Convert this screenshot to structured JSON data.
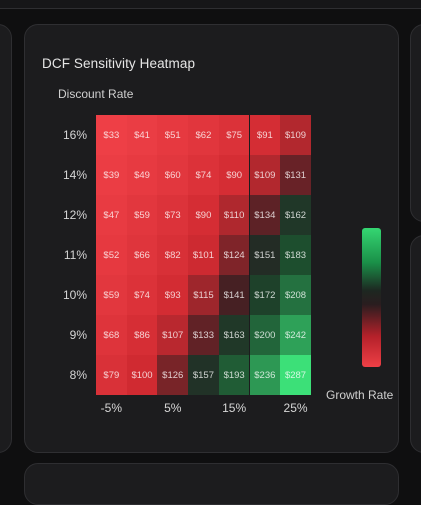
{
  "chart_data": {
    "type": "heatmap",
    "title": "DCF Sensitivity Heatmap",
    "ylabel": "Discount Rate",
    "legend_label": "Growth Rate",
    "legend_placement": "right",
    "y_ticks": [
      "16%",
      "14%",
      "12%",
      "11%",
      "10%",
      "9%",
      "8%"
    ],
    "x_ticks": [
      "-5%",
      "5%",
      "15%",
      "25%"
    ],
    "rows": [
      [
        "$33",
        "$41",
        "$51",
        "$62",
        "$75",
        "$91",
        "$109"
      ],
      [
        "$39",
        "$49",
        "$60",
        "$74",
        "$90",
        "$109",
        "$131"
      ],
      [
        "$47",
        "$59",
        "$73",
        "$90",
        "$110",
        "$134",
        "$162"
      ],
      [
        "$52",
        "$66",
        "$82",
        "$101",
        "$124",
        "$151",
        "$183"
      ],
      [
        "$59",
        "$74",
        "$93",
        "$115",
        "$141",
        "$172",
        "$208"
      ],
      [
        "$68",
        "$86",
        "$107",
        "$133",
        "$163",
        "$200",
        "$242"
      ],
      [
        "$79",
        "$100",
        "$126",
        "$157",
        "$193",
        "$236",
        "$287"
      ]
    ],
    "values": [
      [
        33,
        41,
        51,
        62,
        75,
        91,
        109
      ],
      [
        39,
        49,
        60,
        74,
        90,
        109,
        131
      ],
      [
        47,
        59,
        73,
        90,
        110,
        134,
        162
      ],
      [
        52,
        66,
        82,
        101,
        124,
        151,
        183
      ],
      [
        59,
        74,
        93,
        115,
        141,
        172,
        208
      ],
      [
        68,
        86,
        107,
        133,
        163,
        200,
        242
      ],
      [
        79,
        100,
        126,
        157,
        193,
        236,
        287
      ]
    ],
    "color_low": "#ee3f46",
    "color_mid": "#222222",
    "color_high": "#35d672"
  }
}
